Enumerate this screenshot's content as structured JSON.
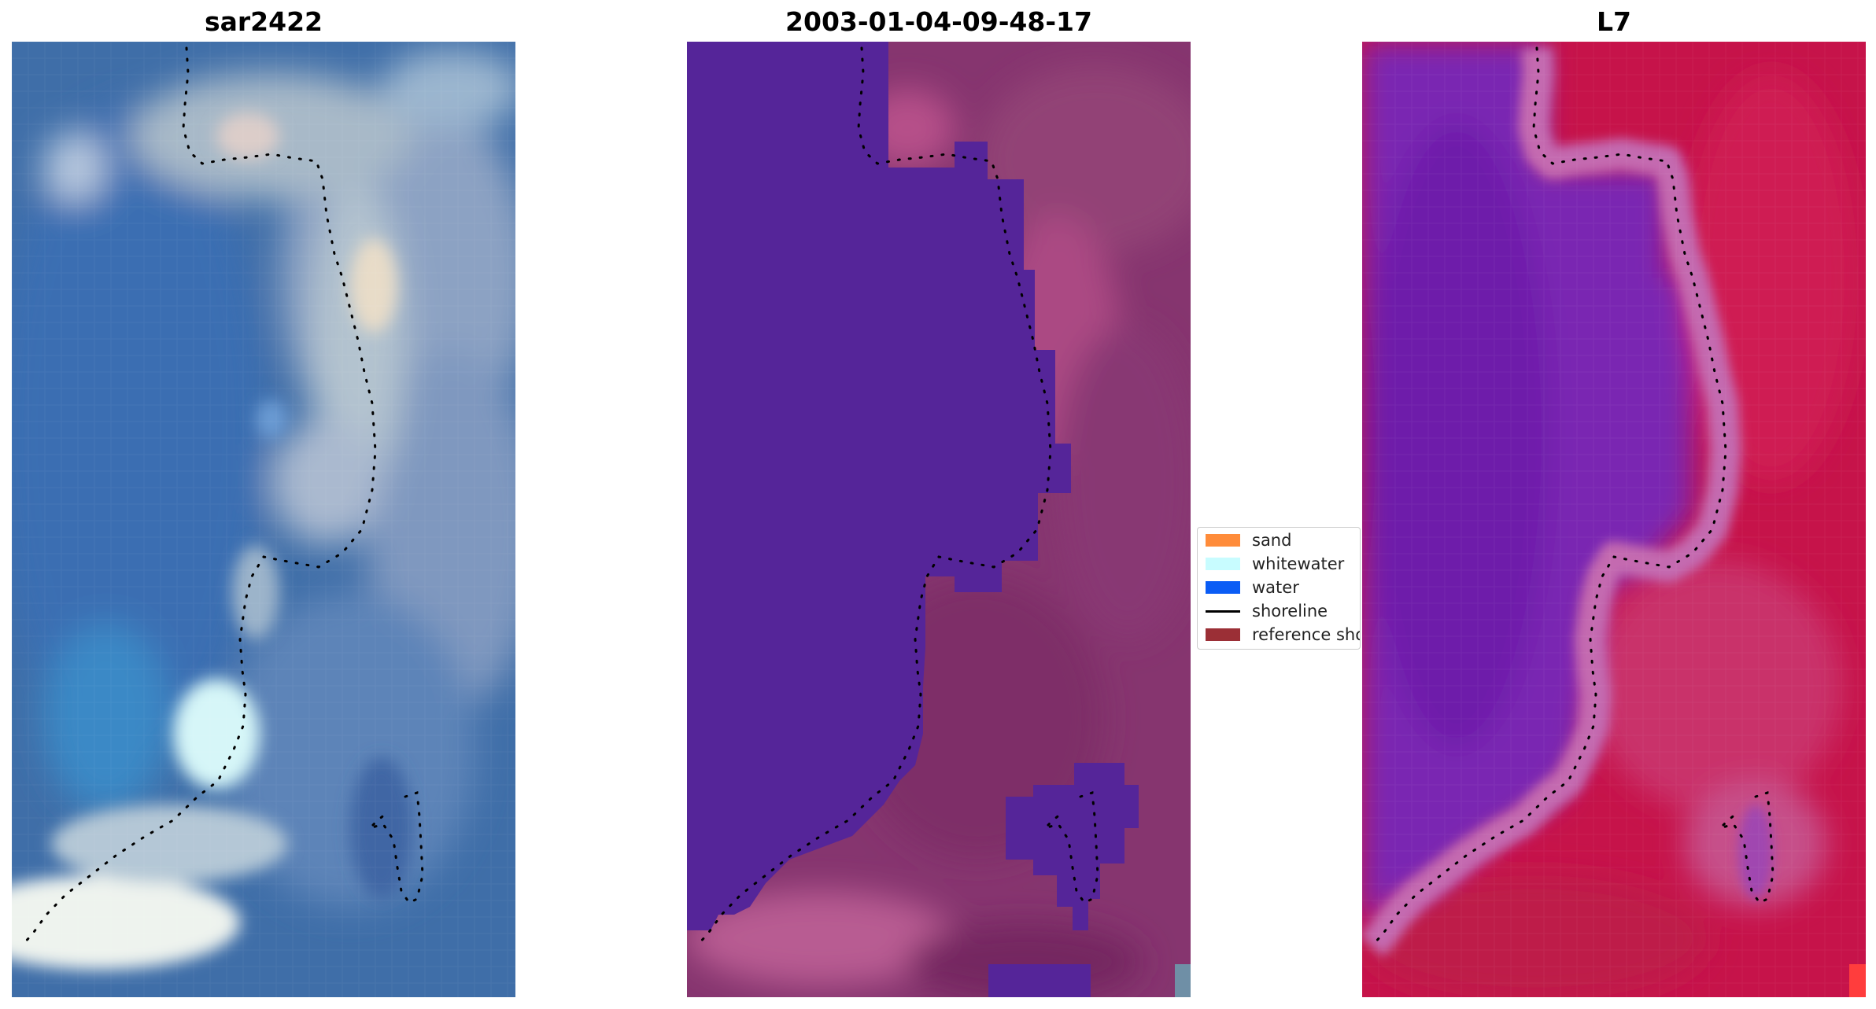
{
  "panels": [
    {
      "title": "sar2422"
    },
    {
      "title": "2003-01-04-09-48-17"
    },
    {
      "title": "L7"
    }
  ],
  "legend": {
    "items": [
      {
        "label": "sand",
        "kind": "patch",
        "color": "#ff8c3a"
      },
      {
        "label": "whitewater",
        "kind": "patch",
        "color": "#c8fcff"
      },
      {
        "label": "water",
        "kind": "patch",
        "color": "#0a5cf5"
      },
      {
        "label": "shoreline",
        "kind": "line",
        "color": "#000000"
      },
      {
        "label": "reference shoreline",
        "kind": "patch",
        "color": "#9b2f36"
      }
    ]
  },
  "colors": {
    "rgb_water": "#3d6fae",
    "rgb_land": "#7f9cc2",
    "rgb_whitewater": "#e6f0f0",
    "class_water": "#552599",
    "class_land": "#86356f",
    "false_color_water": "#7a28b2",
    "false_color_land": "#c6134a",
    "shoreline_dots": "#000000"
  }
}
